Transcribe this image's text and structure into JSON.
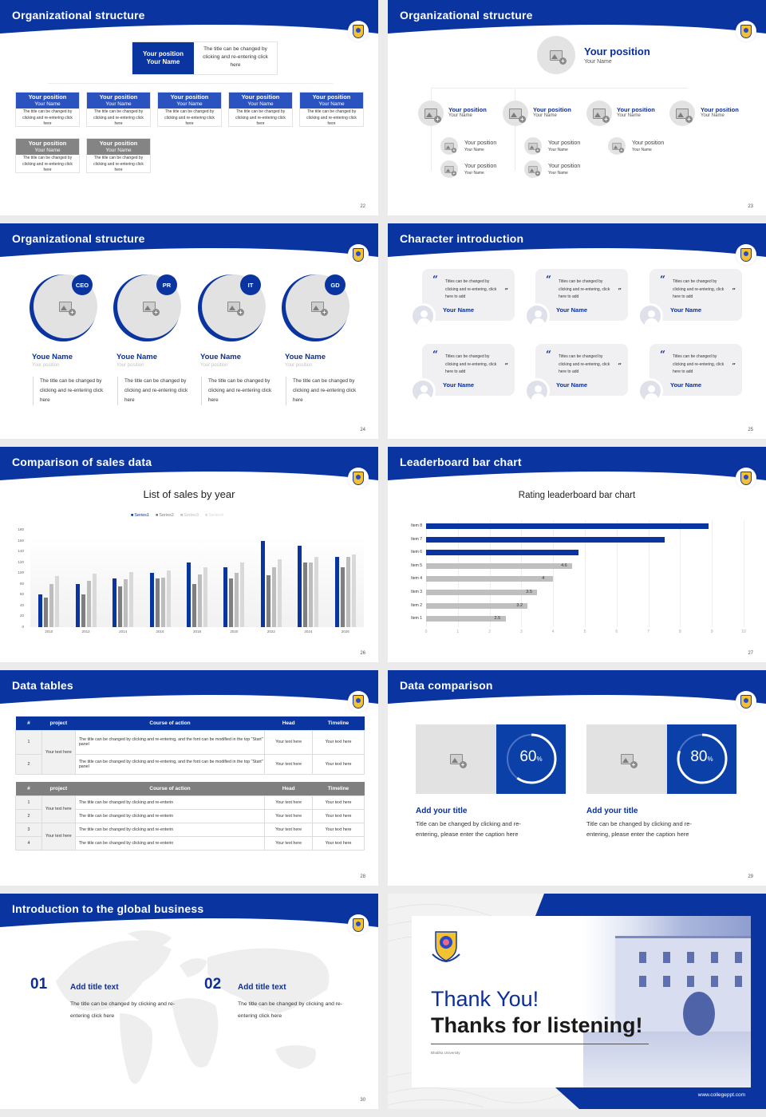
{
  "theme": {
    "primary": "#0a34a0",
    "secondary_blue": "#2b53c0",
    "gray": "#7f7f7f",
    "light_gray": "#e3e2e3"
  },
  "slides": {
    "s22": {
      "title": "Organizational structure",
      "page": "22",
      "top": {
        "position": "Your position",
        "name": "Your Name",
        "desc": "The title can be changed by clicking and re-entering click here"
      },
      "row1": [
        {
          "position": "Your position",
          "name": "Your Name",
          "desc": "The title can be changed by clicking and re-entering click here"
        },
        {
          "position": "Your position",
          "name": "Your Name",
          "desc": "The title can be changed by clicking and re-entering click here"
        },
        {
          "position": "Your position",
          "name": "Your Name",
          "desc": "The title can be changed by clicking and re-entering click here"
        },
        {
          "position": "Your position",
          "name": "Your Name",
          "desc": "The title can be changed by clicking and re-entering click here"
        },
        {
          "position": "Your position",
          "name": "Your Name",
          "desc": "The title can be changed by clicking and re-entering click here"
        }
      ],
      "row2": [
        {
          "position": "Your position",
          "name": "Your Name",
          "desc": "The title can be changed by clicking and re-entering click here"
        },
        {
          "position": "Your position",
          "name": "Your Name",
          "desc": "The title can be changed by clicking and re-entering click here"
        }
      ]
    },
    "s23": {
      "title": "Organizational structure",
      "page": "23",
      "top": {
        "position": "Your position",
        "name": "Your Name"
      },
      "level2": [
        {
          "position": "Your position",
          "name": "Your Name"
        },
        {
          "position": "Your position",
          "name": "Your Name"
        },
        {
          "position": "Your position",
          "name": "Your Name"
        },
        {
          "position": "Your position",
          "name": "Your Name"
        }
      ],
      "level3": [
        {
          "position": "Your position",
          "name": "Your Name"
        },
        {
          "position": "Your position",
          "name": "Your Name"
        },
        {
          "position": "Your position",
          "name": "Your Name"
        },
        {
          "position": "Your position",
          "name": "Your Name"
        },
        {
          "position": "Your position",
          "name": "Your Name"
        }
      ]
    },
    "s24": {
      "title": "Organizational structure",
      "page": "24",
      "people": [
        {
          "badge": "CEO",
          "name": "Youe Name",
          "position": "Your position",
          "desc": "The title can be changed by clicking and re-entering click here"
        },
        {
          "badge": "PR",
          "name": "Youe Name",
          "position": "Your position",
          "desc": "The title can be changed by clicking and re-entering click here"
        },
        {
          "badge": "IT",
          "name": "Youe Name",
          "position": "Your position",
          "desc": "The title can be changed by clicking and re-entering click here"
        },
        {
          "badge": "GD",
          "name": "Youe Name",
          "position": "Your position",
          "desc": "The title can be changed by clicking and re-entering click here"
        }
      ]
    },
    "s25": {
      "title": "Character introduction",
      "page": "25",
      "open_quote": "“",
      "close_quote": "”",
      "cards": [
        {
          "text": "Titles can be changed by clicking and re-entering, click here to add",
          "name": "Your Name"
        },
        {
          "text": "Titles can be changed by clicking and re-entering, click here to add",
          "name": "Your Name"
        },
        {
          "text": "Titles can be changed by clicking and re-entering, click here to add",
          "name": "Your Name"
        },
        {
          "text": "Titles can be changed by clicking and re-entering, click here to add",
          "name": "Your Name"
        },
        {
          "text": "Titles can be changed by clicking and re-entering, click here to add",
          "name": "Your Name"
        },
        {
          "text": "Titles can be changed by clicking and re-entering, click here to add",
          "name": "Your Name"
        }
      ]
    },
    "s26": {
      "title": "Comparison of sales data",
      "page": "26"
    },
    "s27": {
      "title": "Leaderboard bar chart",
      "page": "27"
    },
    "s28": {
      "title": "Data tables",
      "page": "28",
      "headers": [
        "#",
        "project",
        "Course of action",
        "Head",
        "Timeline"
      ],
      "table1": {
        "project": "Your text here",
        "rows": [
          {
            "num": "1",
            "action": "The title can be changed by clicking and re-entering, and the font can be modified in the top \"Start\" panel",
            "head": "Your text here",
            "timeline": "Your text here"
          },
          {
            "num": "2",
            "action": "The title can be changed by clicking and re-entering, and the font can be modified in the top \"Start\" panel",
            "head": "Your text here",
            "timeline": "Your text here"
          }
        ]
      },
      "table2": {
        "projects": [
          "Your text here",
          "Your text here"
        ],
        "rows": [
          {
            "num": "1",
            "action": "The title can be changed by clicking and re-enterin",
            "head": "Your text here",
            "timeline": "Your text here"
          },
          {
            "num": "2",
            "action": "The title can be changed by clicking and re-enterin",
            "head": "Your text here",
            "timeline": "Your text here"
          },
          {
            "num": "3",
            "action": "The title can be changed by clicking and re-enterin",
            "head": "Your text here",
            "timeline": "Your text here"
          },
          {
            "num": "4",
            "action": "The title can be changed by clicking and re-enterin",
            "head": "Your text here",
            "timeline": "Your text here"
          }
        ]
      }
    },
    "s29": {
      "title": "Data comparison",
      "page": "29",
      "items": [
        {
          "percent": "60",
          "unit": "%",
          "value": 60,
          "title": "Add your title",
          "desc": "Title can be changed by clicking and re-entering, please enter the caption here"
        },
        {
          "percent": "80",
          "unit": "%",
          "value": 80,
          "title": "Add your title",
          "desc": "Title can be changed by clicking and re-entering, please enter the caption here"
        }
      ]
    },
    "s30": {
      "title": "Introduction to the global business",
      "page": "30",
      "items": [
        {
          "num": "01",
          "title": "Add title text",
          "desc": "The title can be changed by clicking and re-entering click here"
        },
        {
          "num": "02",
          "title": "Add title text",
          "desc": "The title can be changed by clicking and re-entering click here"
        }
      ]
    },
    "s31": {
      "line1": "Thank You!",
      "line2": "Thanks for listening!",
      "university": "Bhabha University",
      "url": "www.collegeppt.com"
    }
  },
  "chart_data": [
    {
      "type": "bar",
      "title": "List of sales by year",
      "categories": [
        "2010",
        "2012",
        "2014",
        "2016",
        "2018",
        "2020",
        "2022",
        "2024",
        "2026"
      ],
      "series": [
        {
          "name": "Series1",
          "color": "#0a34a0",
          "values": [
            60,
            80,
            90,
            100,
            120,
            110,
            160,
            150,
            130
          ]
        },
        {
          "name": "Series2",
          "color": "#7f7f7f",
          "values": [
            55,
            60,
            75,
            90,
            80,
            90,
            96,
            120,
            110
          ]
        },
        {
          "name": "Series3",
          "color": "#bdbdbd",
          "values": [
            80,
            86,
            88,
            92,
            98,
            100,
            110,
            120,
            130
          ]
        },
        {
          "name": "Series4",
          "color": "#d9d9d9",
          "values": [
            95,
            99,
            102,
            105,
            110,
            120,
            126,
            130,
            135
          ]
        }
      ],
      "yticks": [
        "0",
        "20",
        "40",
        "60",
        "80",
        "100",
        "120",
        "140",
        "160",
        "180"
      ],
      "ylim": [
        0,
        180
      ],
      "xlabel": "",
      "ylabel": "",
      "legend_position": "top"
    },
    {
      "type": "bar",
      "orientation": "horizontal",
      "title": "Rating leaderboard bar chart",
      "categories": [
        "Item 8",
        "Item 7",
        "Item 6",
        "Item 5",
        "Item 4",
        "Item 3",
        "Item 2",
        "Item 1"
      ],
      "values": [
        8.9,
        7.5,
        4.8,
        4.6,
        4,
        3.5,
        3.2,
        2.5
      ],
      "labels": [
        "",
        "",
        "",
        "4.6",
        "4",
        "3.5",
        "3.2",
        "2.5"
      ],
      "highlight_top": 3,
      "colors": {
        "top": "#0a34a0",
        "rest": "#bfbfbf"
      },
      "xticks": [
        "0",
        "1",
        "2",
        "3",
        "4",
        "5",
        "6",
        "7",
        "8",
        "9",
        "10"
      ],
      "xlim": [
        0,
        10
      ]
    }
  ]
}
